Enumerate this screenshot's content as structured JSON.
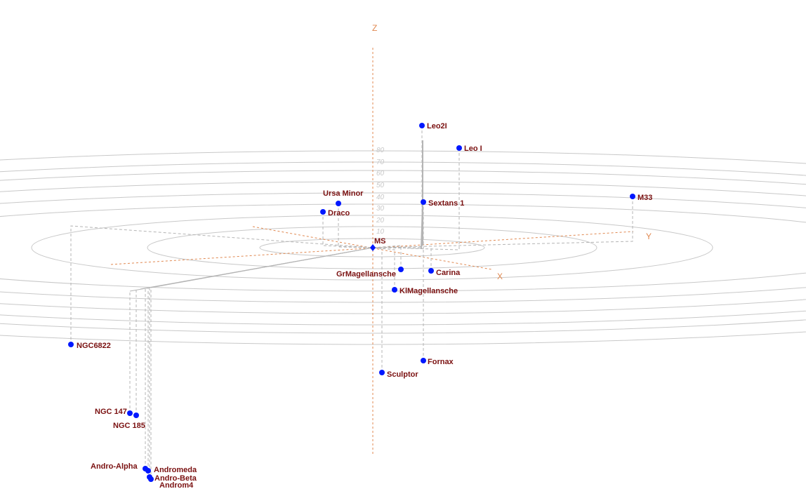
{
  "axes": {
    "z": "Z",
    "y": "Y",
    "x": "X"
  },
  "ticks": [
    "10",
    "20",
    "30",
    "40",
    "50",
    "60",
    "70",
    "80"
  ],
  "colors": {
    "axis": "#e08850",
    "ring": "#c8c8c8",
    "drop": "#b4b4b4",
    "point": "#0018ff",
    "label": "#7a1010"
  },
  "objects": [
    {
      "name": "MS"
    },
    {
      "name": "Leo2I"
    },
    {
      "name": "Leo I"
    },
    {
      "name": "Ursa Minor"
    },
    {
      "name": "Draco"
    },
    {
      "name": "Sextans 1"
    },
    {
      "name": "M33"
    },
    {
      "name": "GrMagellansche"
    },
    {
      "name": "Carina"
    },
    {
      "name": "KlMagellansche"
    },
    {
      "name": "NGC6822"
    },
    {
      "name": "Fornax"
    },
    {
      "name": "Sculptor"
    },
    {
      "name": "NGC 147"
    },
    {
      "name": "NGC 185"
    },
    {
      "name": "Andro-Alpha"
    },
    {
      "name": "Andromeda"
    },
    {
      "name": "Andro-Beta"
    },
    {
      "name": "Androm4"
    }
  ]
}
